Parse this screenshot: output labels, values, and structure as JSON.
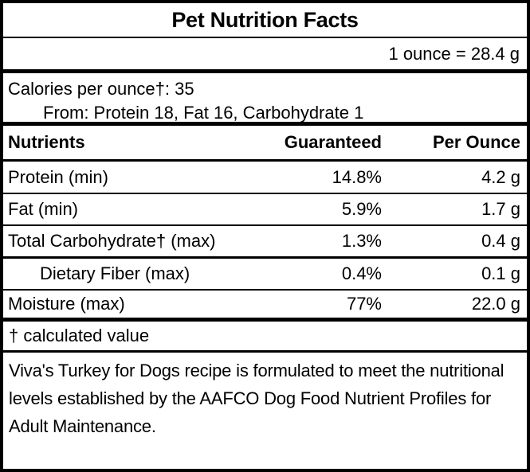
{
  "label": {
    "title": "Pet Nutrition Facts",
    "serving_equivalence": "1 ounce = 28.4 g",
    "calories": {
      "per_ounce_line": "Calories per ounce†: 35",
      "from_line": "From: Protein 18, Fat 16, Carbohydrate 1"
    },
    "table": {
      "headers": {
        "nutrient": "Nutrients",
        "guaranteed": "Guaranteed",
        "per_ounce": "Per Ounce"
      },
      "rows": [
        {
          "nutrient": "Protein (min)",
          "guaranteed": "14.8%",
          "per_ounce": "4.2 g",
          "indent": false
        },
        {
          "nutrient": "Fat (min)",
          "guaranteed": "5.9%",
          "per_ounce": "1.7 g",
          "indent": false
        },
        {
          "nutrient": "Total Carbohydrate† (max)",
          "guaranteed": "1.3%",
          "per_ounce": "0.4 g",
          "indent": false
        },
        {
          "nutrient": "Dietary Fiber (max)",
          "guaranteed": "0.4%",
          "per_ounce": "0.1 g",
          "indent": true
        },
        {
          "nutrient": "Moisture (max)",
          "guaranteed": "77%",
          "per_ounce": "22.0 g",
          "indent": false
        }
      ]
    },
    "footnote": "† calculated value",
    "statement": "Viva's Turkey for Dogs recipe is formulated to meet the nutritional levels established by the AAFCO Dog Food Nutrient Profiles for Adult Maintenance."
  },
  "colors": {
    "text": "#000000",
    "border": "#000000",
    "background": "#ffffff"
  }
}
